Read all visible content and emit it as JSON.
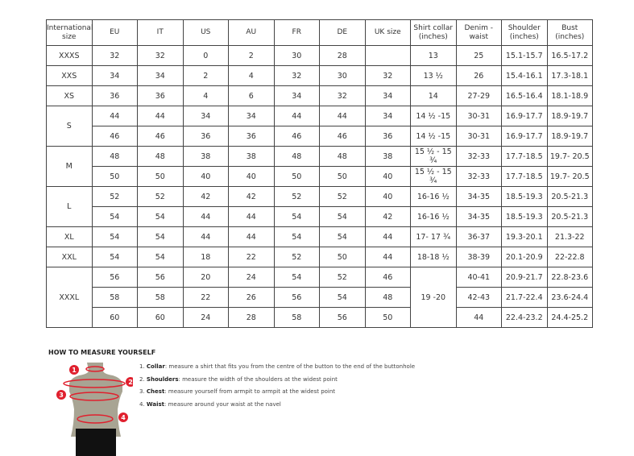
{
  "headers": [
    "International size",
    "EU",
    "IT",
    "US",
    "AU",
    "FR",
    "DE",
    "UK size",
    "Shirt collar (inches)",
    "Denim - waist",
    "Shoulder (inches)",
    "Bust (inches)"
  ],
  "rows": [
    {
      "size": "XXXS",
      "cells": [
        "32",
        "32",
        "0",
        "2",
        "30",
        "28",
        "",
        "13",
        "25",
        "15.1-15.7",
        "16.5-17.2"
      ]
    },
    {
      "size": "XXS",
      "cells": [
        "34",
        "34",
        "2",
        "4",
        "32",
        "30",
        "32",
        "13 ½",
        "26",
        "15.4-16.1",
        "17.3-18.1"
      ]
    },
    {
      "size": "XS",
      "cells": [
        "36",
        "36",
        "4",
        "6",
        "34",
        "32",
        "34",
        "14",
        "27-29",
        "16.5-16.4",
        "18.1-18.9"
      ]
    },
    {
      "size": "S",
      "cells": [
        "44",
        "44",
        "34",
        "34",
        "44",
        "44",
        "34",
        "14 ½ -15",
        "30-31",
        "16.9-17.7",
        "18.9-19.7"
      ]
    },
    {
      "size": "",
      "cells": [
        "46",
        "46",
        "36",
        "36",
        "46",
        "46",
        "36",
        "14 ½ -15",
        "30-31",
        "16.9-17.7",
        "18.9-19.7"
      ]
    },
    {
      "size": "M",
      "cells": [
        "48",
        "48",
        "38",
        "38",
        "48",
        "48",
        "38",
        "15 ½ - 15 ¾",
        "32-33",
        "17.7-18.5",
        "19.7- 20.5"
      ]
    },
    {
      "size": "",
      "cells": [
        "50",
        "50",
        "40",
        "40",
        "50",
        "50",
        "40",
        "15 ½ - 15 ¾",
        "32-33",
        "17.7-18.5",
        "19.7- 20.5"
      ]
    },
    {
      "size": "L",
      "cells": [
        "52",
        "52",
        "42",
        "42",
        "52",
        "52",
        "40",
        "16-16 ½",
        "34-35",
        "18.5-19.3",
        "20.5-21.3"
      ]
    },
    {
      "size": "",
      "cells": [
        "54",
        "54",
        "44",
        "44",
        "54",
        "54",
        "42",
        "16-16 ½",
        "34-35",
        "18.5-19.3",
        "20.5-21.3"
      ]
    },
    {
      "size": "XL",
      "cells": [
        "54",
        "54",
        "44",
        "44",
        "54",
        "54",
        "44",
        "17- 17 ¾",
        "36-37",
        "19.3-20.1",
        "21.3-22"
      ]
    },
    {
      "size": "XXL",
      "cells": [
        "54",
        "54",
        "18",
        "22",
        "52",
        "50",
        "44",
        "18-18 ½",
        "38-39",
        "20.1-20.9",
        "22-22.8"
      ]
    },
    {
      "size": "XXXL",
      "cells": [
        "56",
        "56",
        "20",
        "24",
        "54",
        "52",
        "46",
        "19 -20",
        "40-41",
        "20.9-21.7",
        "22.8-23.6"
      ]
    },
    {
      "size": "",
      "cells": [
        "58",
        "58",
        "22",
        "26",
        "56",
        "54",
        "48",
        "",
        "42-43",
        "21.7-22.4",
        "23.6-24.4"
      ]
    },
    {
      "size": "",
      "cells": [
        "60",
        "60",
        "24",
        "28",
        "58",
        "56",
        "50",
        "",
        "44",
        "22.4-23.2",
        "24.4-25.2"
      ]
    }
  ],
  "howto": {
    "title": "HOW TO MEASURE YOURSELF",
    "markers": [
      "1",
      "2",
      "3",
      "4"
    ],
    "steps": [
      {
        "num": "1.",
        "term": "Collar",
        "text": ": measure a shirt that fits you from the centre of the button to the end of the buttonhole"
      },
      {
        "num": "2.",
        "term": "Shoulders",
        "text": ": measure the width of the shoulders at the widest point"
      },
      {
        "num": "3.",
        "term": "Chest",
        "text": ": measure yourself from armpit to armpit at the widest point"
      },
      {
        "num": "4.",
        "term": "Waist",
        "text": ": measure around your waist at the navel"
      }
    ]
  },
  "colors": {
    "marker": "#e0202e",
    "torso": "#a8a493",
    "shorts": "#111111"
  }
}
